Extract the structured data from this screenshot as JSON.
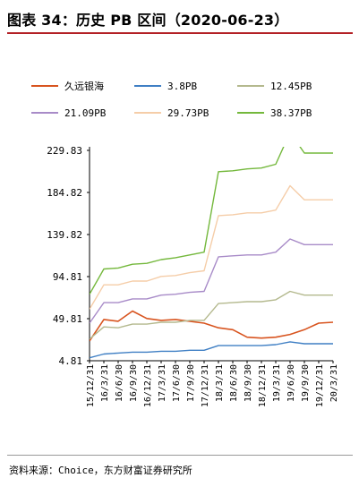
{
  "header": {
    "title": "图表 34：历史 PB 区间（2020-06-23）"
  },
  "footer": {
    "source": "资料来源：Choice，东方财富证券研究所"
  },
  "colors": {
    "series": [
      "#d8541f",
      "#3f7fc4",
      "#b4b98e",
      "#a88bc8",
      "#f5cda8",
      "#74b83c"
    ],
    "accent": "#b32025"
  },
  "chart_data": {
    "type": "line",
    "title": "",
    "xlabel": "",
    "ylabel": "",
    "ylim": [
      4.81,
      229.83
    ],
    "yticks": [
      "229.83",
      "184.82",
      "139.82",
      "94.81",
      "49.81",
      "4.81"
    ],
    "xticks": [
      "15/12/31",
      "16/3/31",
      "16/6/30",
      "16/9/30",
      "16/12/31",
      "17/3/31",
      "17/6/30",
      "17/9/30",
      "17/12/31",
      "18/3/31",
      "18/6/30",
      "18/9/30",
      "18/12/31",
      "19/3/31",
      "19/6/30",
      "19/9/30",
      "19/12/31",
      "20/3/31"
    ],
    "legend_position": "top",
    "series": [
      {
        "name": "久远银海",
        "values": [
          26,
          49,
          47,
          58,
          50,
          48,
          49,
          47,
          45,
          40,
          38,
          30,
          29,
          30,
          33,
          38,
          45,
          46
        ]
      },
      {
        "name": "3.8PB",
        "values": [
          8,
          12,
          13,
          14,
          14,
          15,
          15,
          16,
          16,
          21,
          21,
          21,
          21,
          22,
          25,
          23,
          23,
          23
        ]
      },
      {
        "name": "12.45PB",
        "values": [
          28,
          41,
          40,
          44,
          44,
          46,
          46,
          48,
          48,
          66,
          67,
          68,
          68,
          70,
          79,
          75,
          75,
          75
        ]
      },
      {
        "name": "21.09PB",
        "values": [
          45,
          67,
          67,
          71,
          71,
          75,
          76,
          78,
          79,
          116,
          117,
          118,
          118,
          121,
          135,
          129,
          129,
          129
        ]
      },
      {
        "name": "29.73PB",
        "values": [
          60,
          86,
          86,
          90,
          90,
          95,
          96,
          99,
          101,
          160,
          161,
          163,
          163,
          166,
          192,
          177,
          177,
          177
        ]
      },
      {
        "name": "38.37PB",
        "values": [
          76,
          103,
          104,
          108,
          109,
          113,
          115,
          118,
          121,
          207,
          208,
          210,
          211,
          215,
          249,
          227,
          227,
          227
        ]
      }
    ]
  }
}
